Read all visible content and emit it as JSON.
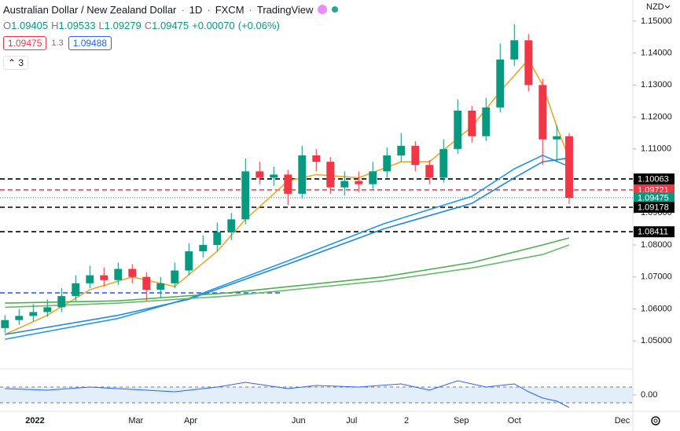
{
  "header": {
    "symbol": "Australian Dollar / New Zealand Dollar",
    "interval": "1D",
    "source": "FXCM",
    "platform": "TradingView",
    "quote": [
      {
        "label": "O",
        "value": "1.09405"
      },
      {
        "label": "H",
        "value": "1.09533"
      },
      {
        "label": "L",
        "value": "1.09279"
      },
      {
        "label": "C",
        "value": "1.09475"
      }
    ],
    "change": "+0.00070",
    "change_pct": "(+0.06%)",
    "sell": "1.09475",
    "spread": "1.3",
    "buy": "1.09488",
    "indicators_count": "3"
  },
  "currency": "NZD",
  "chart_data": {
    "type": "candlestick",
    "up_color": "#089981",
    "down_color": "#f23645",
    "x": [
      -14,
      -6,
      2,
      10,
      18,
      26,
      34,
      42,
      50,
      58,
      66,
      74,
      82,
      90,
      98,
      106,
      114,
      122,
      130,
      138,
      146,
      154,
      162,
      170,
      178,
      186,
      194,
      202,
      210,
      218,
      226,
      234,
      242,
      250,
      258,
      266,
      274,
      282,
      290,
      298,
      305
    ],
    "open": [
      1.054,
      1.0565,
      1.0578,
      1.059,
      1.0605,
      1.064,
      1.068,
      1.0705,
      1.069,
      1.0725,
      1.07,
      1.066,
      1.068,
      1.072,
      1.078,
      1.08,
      1.084,
      1.088,
      1.103,
      1.101,
      1.102,
      1.096,
      1.108,
      1.106,
      1.098,
      1.1,
      1.099,
      1.103,
      1.108,
      1.111,
      1.105,
      1.101,
      1.11,
      1.122,
      1.114,
      1.123,
      1.138,
      1.144,
      1.13,
      1.113,
      1.114
    ],
    "high": [
      1.058,
      1.06,
      1.0615,
      1.063,
      1.0665,
      1.0705,
      1.0735,
      1.073,
      1.0745,
      1.074,
      1.0715,
      1.07,
      1.0745,
      1.0805,
      1.083,
      1.087,
      1.09,
      1.107,
      1.106,
      1.1045,
      1.1035,
      1.111,
      1.11,
      1.1075,
      1.103,
      1.103,
      1.106,
      1.1105,
      1.115,
      1.1125,
      1.1065,
      1.113,
      1.1255,
      1.1235,
      1.126,
      1.143,
      1.149,
      1.146,
      1.132,
      1.1175,
      1.115
    ],
    "low": [
      1.0525,
      1.055,
      1.056,
      1.0575,
      1.059,
      1.0625,
      1.0665,
      1.067,
      1.0675,
      1.068,
      1.0625,
      1.0635,
      1.0665,
      1.0705,
      1.076,
      1.078,
      1.0815,
      1.0865,
      1.099,
      1.0985,
      1.0925,
      1.0945,
      1.103,
      1.096,
      1.0955,
      1.0965,
      1.0975,
      1.101,
      1.106,
      1.103,
      1.099,
      1.0995,
      1.1085,
      1.112,
      1.1125,
      1.1215,
      1.136,
      1.128,
      1.105,
      1.106,
      1.0928
    ],
    "close": [
      1.0565,
      1.0578,
      1.059,
      1.0605,
      1.064,
      1.068,
      1.0705,
      1.069,
      1.0725,
      1.07,
      1.066,
      1.068,
      1.072,
      1.078,
      1.08,
      1.084,
      1.088,
      1.103,
      1.101,
      1.102,
      1.096,
      1.108,
      1.106,
      1.098,
      1.1,
      1.099,
      1.103,
      1.108,
      1.111,
      1.105,
      1.101,
      1.11,
      1.122,
      1.114,
      1.123,
      1.138,
      1.144,
      1.13,
      1.113,
      1.114,
      1.0947
    ],
    "lines": [
      {
        "color": "#f5a623",
        "x": [
          -14,
          10,
          34,
          58,
          82,
          106,
          122,
          146,
          162,
          186,
          210,
          226,
          250,
          266,
          282,
          290,
          298,
          305
        ],
        "values": [
          1.052,
          1.058,
          1.066,
          1.07,
          1.067,
          1.078,
          1.088,
          1.1,
          1.102,
          1.101,
          1.106,
          1.106,
          1.117,
          1.128,
          1.138,
          1.13,
          1.117,
          1.107
        ]
      },
      {
        "color": "#2196f3",
        "x": [
          -14,
          50,
          90,
          146,
          200,
          250,
          274,
          290,
          305
        ],
        "values": [
          1.0505,
          1.057,
          1.0633,
          1.075,
          1.0866,
          1.0952,
          1.1038,
          1.108,
          1.1045
        ]
      },
      {
        "color": "#1e88e5",
        "x": [
          -14,
          50,
          90,
          146,
          200,
          250,
          274,
          290,
          305
        ],
        "values": [
          1.052,
          1.058,
          1.063,
          1.074,
          1.085,
          1.093,
          1.101,
          1.106,
          1.1072
        ]
      },
      {
        "color": "#4caf50",
        "x": [
          -14,
          50,
          112,
          200,
          250,
          290,
          305
        ],
        "values": [
          1.0618,
          1.0625,
          1.065,
          1.07,
          1.0745,
          1.08,
          1.0822
        ]
      },
      {
        "color": "#66bb6a",
        "x": [
          -14,
          50,
          112,
          200,
          250,
          290,
          305
        ],
        "values": [
          1.0605,
          1.0618,
          1.064,
          1.0688,
          1.0728,
          1.077,
          1.08
        ]
      }
    ],
    "levels": [
      {
        "value": 1.10063,
        "color": "#000000",
        "style": "dashed",
        "labeled": true
      },
      {
        "value": 1.09721,
        "color": "#f23645",
        "style": "dashed",
        "labeled": true
      },
      {
        "value": 1.09475,
        "color": "#089981",
        "style": "dotted",
        "labeled": true
      },
      {
        "value": 1.09178,
        "color": "#000000",
        "style": "dashed",
        "labeled": true
      },
      {
        "value": 1.08411,
        "color": "#000000",
        "style": "dashed",
        "labeled": true
      },
      {
        "value": 1.065,
        "color": "#2962ff",
        "style": "dashed",
        "labeled": false,
        "xmax": 143
      }
    ],
    "xlim": [
      -16.8,
      341
    ],
    "ylim": [
      1.0412,
      1.1566
    ],
    "xticks": [
      {
        "value": 3,
        "label": "2022"
      },
      {
        "value": 60,
        "label": "Mar"
      },
      {
        "value": 91,
        "label": "Apr"
      },
      {
        "value": 152,
        "label": "Jun"
      },
      {
        "value": 182,
        "label": "Jul"
      },
      {
        "value": 213,
        "label": "2"
      },
      {
        "value": 244,
        "label": "Sep"
      },
      {
        "value": 274,
        "label": "Oct"
      },
      {
        "value": 335,
        "label": "Dec"
      }
    ],
    "yticks": [
      {
        "value": 1.15,
        "label": "1.15000"
      },
      {
        "value": 1.14,
        "label": "1.14000"
      },
      {
        "value": 1.13,
        "label": "1.13000"
      },
      {
        "value": 1.12,
        "label": "1.12000"
      },
      {
        "value": 1.11,
        "label": "1.11000"
      },
      {
        "value": 1.1,
        "label": "1.10000"
      },
      {
        "value": 1.09,
        "label": "1.09000"
      },
      {
        "value": 1.08,
        "label": "1.08000"
      },
      {
        "value": 1.07,
        "label": "1.07000"
      },
      {
        "value": 1.06,
        "label": "1.06000"
      },
      {
        "value": 1.05,
        "label": "1.05000"
      }
    ],
    "oscillator": {
      "color": "#2962ff",
      "band": [
        -0.01,
        0.01
      ],
      "band_color": "#cfe3f7",
      "ylim": [
        -0.019,
        0.031
      ],
      "yticks": [
        {
          "value": 0,
          "label": "0.00"
        }
      ],
      "x": [
        -14,
        10,
        34,
        58,
        82,
        106,
        122,
        146,
        162,
        186,
        210,
        226,
        242,
        258,
        274,
        282,
        290,
        298,
        305
      ],
      "values": [
        0.008,
        0.006,
        0.01,
        0.007,
        0.004,
        0.01,
        0.016,
        0.008,
        0.012,
        0.01,
        0.014,
        0.006,
        0.018,
        0.01,
        0.014,
        0.004,
        -0.004,
        -0.008,
        -0.016
      ]
    }
  }
}
